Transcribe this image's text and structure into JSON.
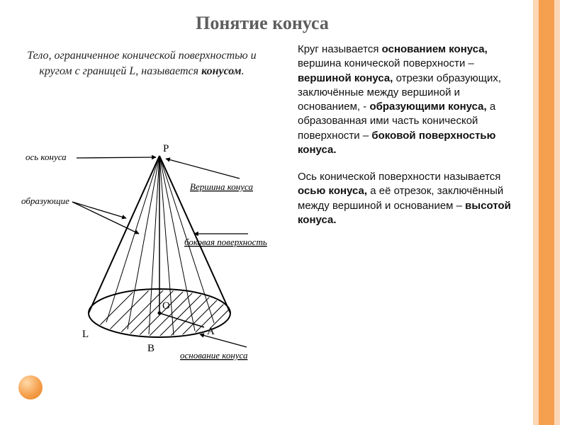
{
  "title": "Понятие конуса",
  "definition_html": "Тело, ограниченное конической поверхностью и кругом с границей L, называется <b>конусом</b>.",
  "right": {
    "p1_html": "Круг называется <b>основанием конуса,</b> вершина конической поверхности – <b>вершиной конуса,</b> отрезки образующих, заключённые между вершиной и основанием, - <b>образующими конуса,</b> а образованная ими часть конической поверхности – <b>боковой поверхностью конуса.</b>",
    "p2_html": "Ось конической поверхности называется <b>осью конуса,</b> а её отрезок, заключённый между вершиной и основанием – <b>высотой конуса.</b>"
  },
  "diagram": {
    "labels": {
      "axis": "ось конуса",
      "generators": "образующие",
      "apex": "Вершина конуса",
      "lateral": "боковая поверхность",
      "base": "основание  конуса"
    },
    "points": {
      "P": "P",
      "O": "O",
      "A": "A",
      "B": "B",
      "L": "L"
    },
    "colors": {
      "stroke": "#000000",
      "bg": "#ffffff",
      "decor_outer": "#fbd7b5",
      "decor_inner": "#f5a04e"
    }
  }
}
